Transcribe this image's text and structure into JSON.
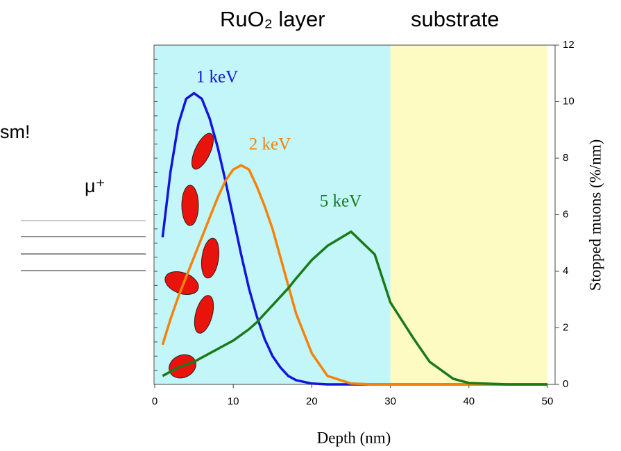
{
  "chart_data": {
    "type": "line",
    "x_label": "Depth (nm)",
    "y_label": "Stopped muons (%/nm)",
    "side_texts": [
      "sm!",
      "μ⁺"
    ],
    "regions": [
      {
        "label": "RuO₂ layer",
        "from": 0,
        "to": 30,
        "color": "#c2f6f8"
      },
      {
        "label": "substrate",
        "from": 30,
        "to": 50,
        "color": "#fdfac2"
      }
    ],
    "x": [
      1,
      2,
      3,
      4,
      5,
      6,
      7,
      8,
      9,
      10,
      11,
      12,
      13,
      14,
      15,
      16,
      17,
      18,
      20,
      22,
      25,
      28,
      30,
      33,
      35,
      38,
      40,
      45,
      50
    ],
    "series": [
      {
        "name": "1 keV",
        "color": "#1414dc",
        "values": [
          5.2,
          7.5,
          9.2,
          10.1,
          10.3,
          10.1,
          9.4,
          8.4,
          7.2,
          5.9,
          4.6,
          3.4,
          2.4,
          1.6,
          1.0,
          0.6,
          0.3,
          0.15,
          0.03,
          0,
          0,
          0,
          0,
          0,
          0,
          0,
          0,
          0,
          0
        ]
      },
      {
        "name": "2 keV",
        "color": "#f5820a",
        "values": [
          1.4,
          2.3,
          3.1,
          3.8,
          4.5,
          5.2,
          5.9,
          6.6,
          7.2,
          7.6,
          7.75,
          7.6,
          7.0,
          6.3,
          5.5,
          4.5,
          3.5,
          2.5,
          1.1,
          0.3,
          0.03,
          0,
          0,
          0,
          0,
          0,
          0,
          0,
          0
        ]
      },
      {
        "name": "5 keV",
        "color": "#1a7a1a",
        "values": [
          0.3,
          0.45,
          0.6,
          0.7,
          0.8,
          0.95,
          1.1,
          1.25,
          1.4,
          1.55,
          1.75,
          1.95,
          2.2,
          2.5,
          2.8,
          3.1,
          3.4,
          3.75,
          4.4,
          4.9,
          5.4,
          4.6,
          2.9,
          1.6,
          0.8,
          0.2,
          0.05,
          0,
          0
        ]
      }
    ],
    "xlim": [
      0,
      50
    ],
    "xticks": [
      0,
      10,
      20,
      30,
      40,
      50
    ],
    "ylim": [
      0,
      12
    ],
    "yticks": [
      0,
      2,
      4,
      6,
      8,
      10,
      12
    ]
  }
}
